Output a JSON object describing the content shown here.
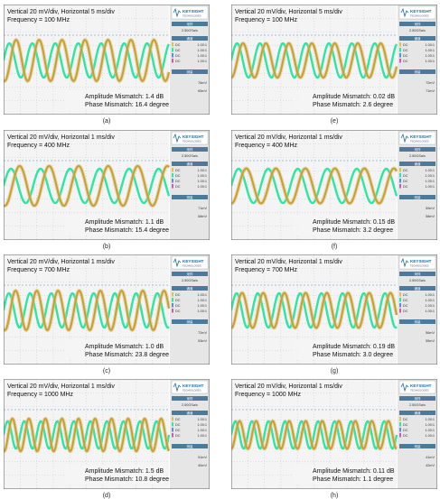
{
  "colors": {
    "ch1": "#2ee6a4",
    "ch2": "#c8a030",
    "screen_bg": "#f4f4f4",
    "grid": "#bfbfbf",
    "center_line": "#4a90c0",
    "side_bg": "#e6e6e6",
    "brand": "#1a6ea0"
  },
  "scope_side": {
    "brand": "KEYSIGHT",
    "sub": "TECHNOLOGIES",
    "rate_label": "采样",
    "rate": "2.50GSa/s",
    "ch_label": "通道",
    "ch_rows": [
      {
        "a": "DC",
        "b": "1.00:1"
      },
      {
        "a": "DC",
        "b": "1.00:1"
      },
      {
        "a": "DC",
        "b": "1.00:1"
      },
      {
        "a": "DC",
        "b": "1.00:1"
      }
    ],
    "meas_label": "测量"
  },
  "chart_data": [
    {
      "type": "line",
      "title": "Vertical 20 mV/div, Horizontal 5 ms/div",
      "subtitle": "Frequency = 100 MHz",
      "annotation": [
        "Amplitude Mismatch: 1.4 dB",
        "Phase Mismatch: 16.4 degree"
      ],
      "caption": "(a)",
      "series": [
        {
          "cycles": 7.2,
          "amplitude": 1.0,
          "phase_deg": 0
        },
        {
          "cycles": 7.2,
          "amplitude": 1.2,
          "phase_deg": 16.4
        }
      ],
      "readouts": [
        "76mV",
        "65mV"
      ]
    },
    {
      "type": "line",
      "title": "Vertical 20 mV/div, Horizontal 1 ms/div",
      "subtitle": "Frequency = 400 MHz",
      "annotation": [
        "Amplitude Mismatch: 1.1 dB",
        "Phase Mismatch: 15.4 degree"
      ],
      "caption": "(b)",
      "series": [
        {
          "cycles": 5.6,
          "amplitude": 1.0,
          "phase_deg": 0
        },
        {
          "cycles": 5.6,
          "amplitude": 1.16,
          "phase_deg": 15.4
        }
      ],
      "readouts": [
        "71mV",
        "58mV"
      ]
    },
    {
      "type": "line",
      "title": "Vertical 20 mV/div, Horizontal 1 ms/div",
      "subtitle": "Frequency = 700 MHz",
      "annotation": [
        "Amplitude Mismatch: 1.0 dB",
        "Phase Mismatch: 23.8 degree"
      ],
      "caption": "(c)",
      "series": [
        {
          "cycles": 7.8,
          "amplitude": 1.0,
          "phase_deg": 0
        },
        {
          "cycles": 7.8,
          "amplitude": 1.15,
          "phase_deg": 23.8
        }
      ],
      "readouts": [
        "72mV",
        "53mV"
      ]
    },
    {
      "type": "line",
      "title": "Vertical 20 mV/div, Horizontal 1 ms/div",
      "subtitle": "Frequency = 1000 MHz",
      "annotation": [
        "Amplitude Mismatch: 1.5 dB",
        "Phase Mismatch: 10.8 degree"
      ],
      "caption": "(d)",
      "series": [
        {
          "cycles": 10.0,
          "amplitude": 0.8,
          "phase_deg": 0
        },
        {
          "cycles": 10.0,
          "amplitude": 0.95,
          "phase_deg": 10.8
        }
      ],
      "readouts": [
        "51mV",
        "40mV"
      ]
    },
    {
      "type": "line",
      "title": "Vertical 20 mV/div, Horizontal 5 ms/div",
      "subtitle": "Frequency = 100 MHz",
      "annotation": [
        "Amplitude Mismatch: 0.02 dB",
        "Phase Mismatch: 2.6 degree"
      ],
      "caption": "(e)",
      "series": [
        {
          "cycles": 7.2,
          "amplitude": 1.0,
          "phase_deg": 0
        },
        {
          "cycles": 7.2,
          "amplitude": 1.0,
          "phase_deg": 2.6
        }
      ],
      "readouts": [
        "72mV",
        "71mV"
      ]
    },
    {
      "type": "line",
      "title": "Vertical 20 mV/div, Horizontal 1 ms/div",
      "subtitle": "Frequency = 400 MHz",
      "annotation": [
        "Amplitude Mismatch: 0.15 dB",
        "Phase Mismatch: 3.2 degree"
      ],
      "caption": "(f)",
      "series": [
        {
          "cycles": 5.6,
          "amplitude": 1.0,
          "phase_deg": 0
        },
        {
          "cycles": 5.6,
          "amplitude": 1.02,
          "phase_deg": 3.2
        }
      ],
      "readouts": [
        "59mV",
        "58mV"
      ]
    },
    {
      "type": "line",
      "title": "Vertical 20 mV/div, Horizontal 1 ms/div",
      "subtitle": "Frequency = 700 MHz",
      "annotation": [
        "Amplitude Mismatch: 0.19 dB",
        "Phase Mismatch: 3.0 degree"
      ],
      "caption": "(g)",
      "series": [
        {
          "cycles": 7.8,
          "amplitude": 1.0,
          "phase_deg": 0
        },
        {
          "cycles": 7.8,
          "amplitude": 1.02,
          "phase_deg": 3.0
        }
      ],
      "readouts": [
        "56mV",
        "55mV"
      ]
    },
    {
      "type": "line",
      "title": "Vertical 20 mV/div, Horizontal 1 ms/div",
      "subtitle": "Frequency = 1000 MHz",
      "annotation": [
        "Amplitude Mismatch: 0.11 dB",
        "Phase Mismatch: 1.1 degree"
      ],
      "caption": "(h)",
      "series": [
        {
          "cycles": 10.0,
          "amplitude": 0.8,
          "phase_deg": 0
        },
        {
          "cycles": 10.0,
          "amplitude": 0.81,
          "phase_deg": 1.1
        }
      ],
      "readouts": [
        "41mV",
        "42mV"
      ]
    }
  ]
}
